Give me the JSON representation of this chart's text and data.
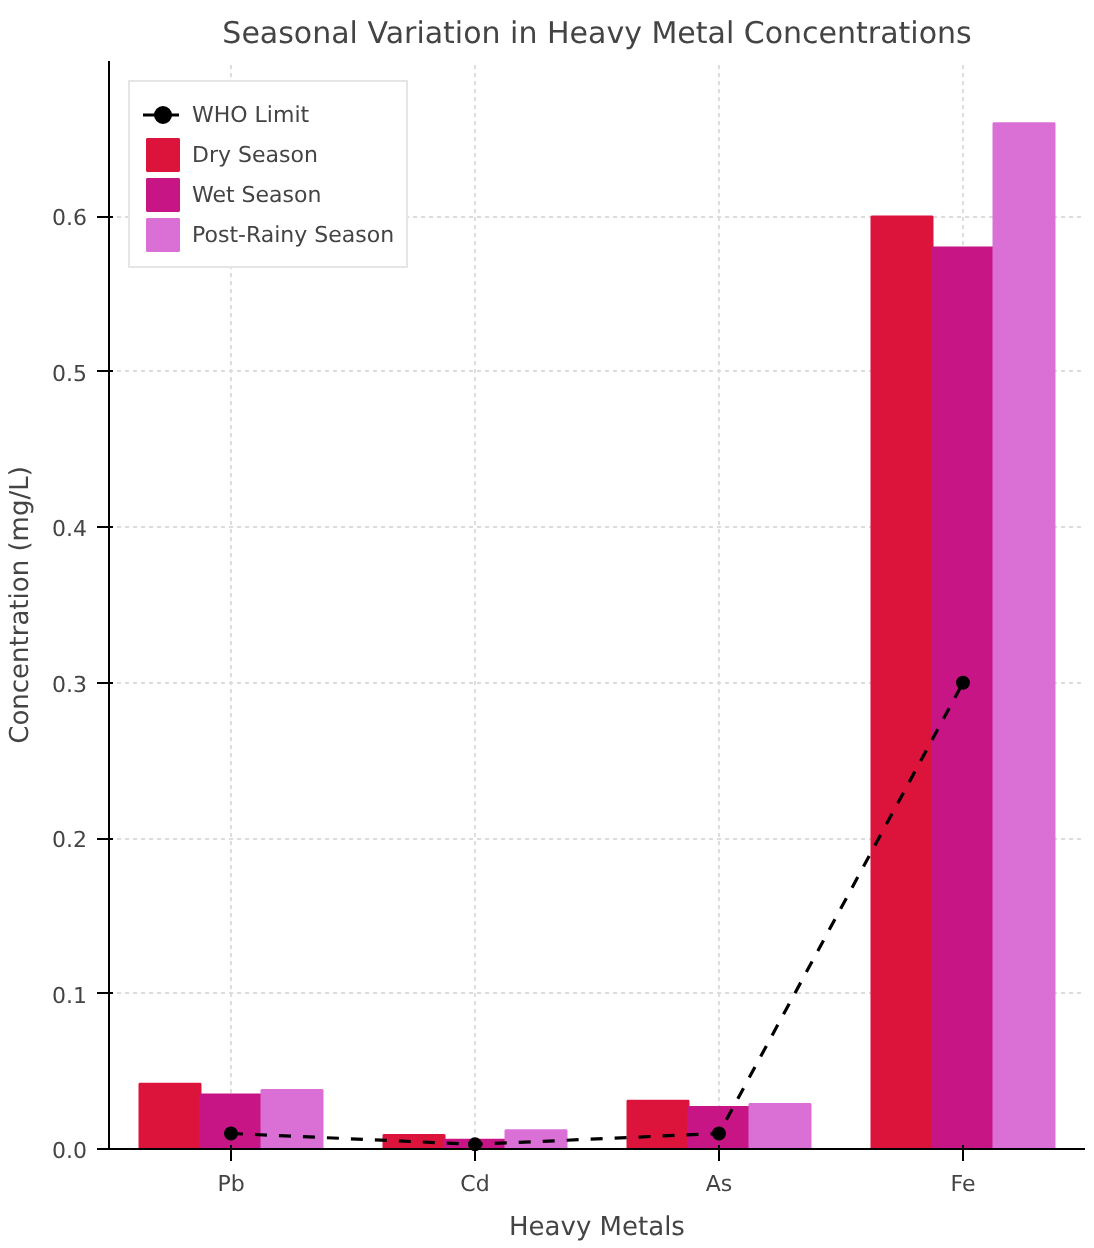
{
  "chart_data": {
    "type": "bar",
    "title": "Seasonal Variation in Heavy Metal Concentrations",
    "xlabel": "Heavy Metals",
    "ylabel": "Concentration (mg/L)",
    "categories": [
      "Pb",
      "Cd",
      "As",
      "Fe"
    ],
    "series": [
      {
        "name": "WHO Limit",
        "type": "line",
        "color": "#000000",
        "values": [
          0.01,
          0.003,
          0.01,
          0.3
        ],
        "marker": "circle",
        "line_style": "dashed"
      },
      {
        "name": "Dry Season",
        "color": "#dc143c",
        "values": [
          0.042,
          0.009,
          0.031,
          0.6
        ]
      },
      {
        "name": "Wet Season",
        "color": "#c71585",
        "values": [
          0.035,
          0.006,
          0.027,
          0.58
        ]
      },
      {
        "name": "Post-Rainy Season",
        "color": "#da70d6",
        "values": [
          0.038,
          0.012,
          0.029,
          0.66
        ]
      }
    ],
    "ylim": [
      0,
      0.7
    ],
    "yticks": [
      {
        "value": 0,
        "label": "0.0"
      },
      0.1,
      0.2,
      0.3,
      0.4,
      0.5,
      0.6
    ],
    "grid": true,
    "legend": "top left"
  }
}
